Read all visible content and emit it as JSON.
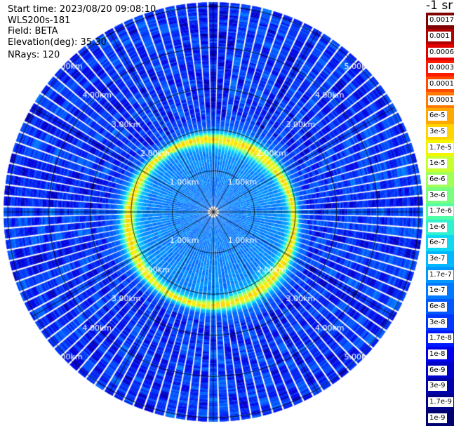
{
  "header": {
    "start_time": "Start time: 2023/08/20 09:08:10",
    "system": "WLS200s-181",
    "field": "Field: BETA",
    "elevation": "Elevation(deg): 35.30",
    "nrays": "NRays: 120"
  },
  "colorbar": {
    "units": "-1 sr",
    "labels": [
      "0.0017",
      "0.001",
      "0.0006",
      "0.0003",
      "0.00017",
      "0.0001",
      "6e-5",
      "3e-5",
      "1.7e-5",
      "1e-5",
      "6e-6",
      "3e-6",
      "1.7e-6",
      "1e-6",
      "6e-7",
      "3e-7",
      "1.7e-7",
      "1e-7",
      "6e-8",
      "3e-8",
      "1.7e-8",
      "1e-8",
      "6e-9",
      "3e-9",
      "1.7e-9",
      "1e-9"
    ],
    "colors": [
      "#800000",
      "#b00000",
      "#e00000",
      "#ff1a00",
      "#ff4a00",
      "#ff7a00",
      "#ffa800",
      "#ffd400",
      "#f5f500",
      "#c8ff30",
      "#a0ff58",
      "#78ff80",
      "#50ffa8",
      "#30f0d0",
      "#10d8f0",
      "#00b8ff",
      "#0098ff",
      "#0078ff",
      "#0058ff",
      "#0038ff",
      "#0018ff",
      "#0000ea",
      "#0000c8",
      "#0000a8",
      "#000088",
      "#000070"
    ]
  },
  "chart_data": {
    "type": "heatmap",
    "projection": "polar-ppi",
    "title": "",
    "quantity": "BETA",
    "units": "-1 sr",
    "elevation_deg": 35.3,
    "n_rays": 120,
    "range_ring_labels": [
      "1.00km",
      "2.00km",
      "3.00km",
      "4.00km",
      "5.00km"
    ],
    "range_rings_km": [
      1,
      2,
      3,
      4,
      5
    ],
    "max_range_km": 5.1,
    "azimuth_spokes_deg": [
      0,
      30,
      60,
      90,
      120,
      150,
      180,
      210,
      240,
      270,
      300,
      330
    ],
    "color_scale": "log",
    "value_range": [
      1e-09,
      0.0017
    ],
    "pattern": {
      "background_level": 1e-08,
      "inner_level": 1e-07,
      "ring_peak_level": 3e-05,
      "ring_range_km": 2.0,
      "ring_center_offset_km": [
        -0.05,
        0.25
      ]
    }
  }
}
